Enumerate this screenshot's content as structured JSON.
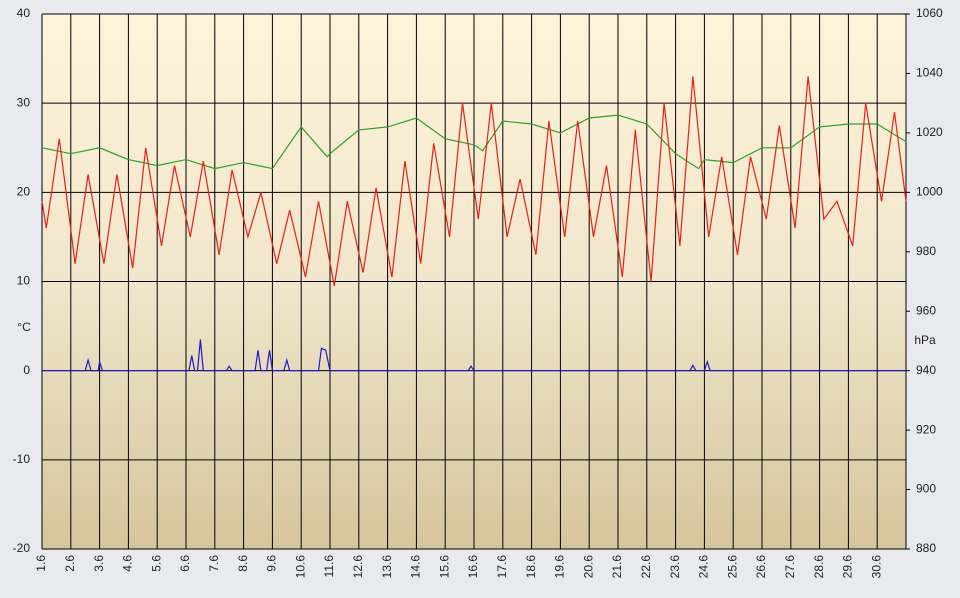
{
  "chart_data": {
    "type": "line",
    "ylabel": "°C",
    "y2label": "hPa",
    "xlim": [
      1,
      31
    ],
    "xticks": [
      {
        "value": 1,
        "label": "1.6"
      },
      {
        "value": 2,
        "label": "2.6"
      },
      {
        "value": 3,
        "label": "3.6"
      },
      {
        "value": 4,
        "label": "4.6"
      },
      {
        "value": 5,
        "label": "5.6"
      },
      {
        "value": 6,
        "label": "6.6"
      },
      {
        "value": 7,
        "label": "7.6"
      },
      {
        "value": 8,
        "label": "8.6"
      },
      {
        "value": 9,
        "label": "9.6"
      },
      {
        "value": 10,
        "label": "10.6"
      },
      {
        "value": 11,
        "label": "11.6"
      },
      {
        "value": 12,
        "label": "12.6"
      },
      {
        "value": 13,
        "label": "13.6"
      },
      {
        "value": 14,
        "label": "14.6"
      },
      {
        "value": 15,
        "label": "15.6"
      },
      {
        "value": 16,
        "label": "16.6"
      },
      {
        "value": 17,
        "label": "17.6"
      },
      {
        "value": 18,
        "label": "18.6"
      },
      {
        "value": 19,
        "label": "19.6"
      },
      {
        "value": 20,
        "label": "20.6"
      },
      {
        "value": 21,
        "label": "21.6"
      },
      {
        "value": 22,
        "label": "22.6"
      },
      {
        "value": 23,
        "label": "23.6"
      },
      {
        "value": 24,
        "label": "24.6"
      },
      {
        "value": 25,
        "label": "25.6"
      },
      {
        "value": 26,
        "label": "26.6"
      },
      {
        "value": 27,
        "label": "27.6"
      },
      {
        "value": 28,
        "label": "28.6"
      },
      {
        "value": 29,
        "label": "29.6"
      },
      {
        "value": 30,
        "label": "30.6"
      }
    ],
    "ylim": [
      -20,
      40
    ],
    "yticks": [
      -20,
      -10,
      0,
      10,
      20,
      30,
      40
    ],
    "y2lim": [
      880,
      1060
    ],
    "y2ticks": [
      880,
      900,
      920,
      940,
      960,
      980,
      1000,
      1020,
      1040,
      1060
    ],
    "grid": true,
    "series": [
      {
        "color": "#2ca02c",
        "axis": "y2",
        "x": [
          1,
          2,
          3,
          4,
          5,
          6,
          7,
          8,
          9,
          10,
          10.9,
          11,
          12,
          13,
          14,
          15,
          16,
          16.3,
          17,
          18,
          19,
          20,
          21,
          22,
          23,
          23.8,
          24,
          25,
          26,
          27,
          28,
          29,
          30,
          31
        ],
        "values": [
          1015,
          1013,
          1015,
          1011,
          1009,
          1011,
          1008,
          1010,
          1008,
          1022,
          1012,
          1013,
          1021,
          1022,
          1025,
          1018,
          1016,
          1014,
          1024,
          1023,
          1020,
          1025,
          1026,
          1023,
          1013,
          1008,
          1011,
          1010,
          1015,
          1015,
          1022,
          1023,
          1023,
          1017
        ]
      },
      {
        "color": "#e8201a",
        "x": [
          1,
          1.15,
          1.6,
          2.15,
          2.6,
          3.15,
          3.6,
          4.15,
          4.6,
          5.15,
          5.6,
          6.15,
          6.6,
          7.15,
          7.6,
          8.15,
          8.6,
          9.15,
          9.6,
          10.15,
          10.6,
          11.15,
          11.6,
          12.15,
          12.6,
          13.15,
          13.6,
          14.15,
          14.6,
          15.15,
          15.6,
          16.15,
          16.6,
          17.15,
          17.6,
          18.15,
          18.6,
          19.15,
          19.6,
          20.15,
          20.6,
          21.15,
          21.6,
          22.15,
          22.6,
          23.15,
          23.6,
          24.15,
          24.6,
          25.15,
          25.6,
          26.15,
          26.6,
          27.15,
          27.6,
          28.15,
          28.6,
          29.15,
          29.6,
          30.15,
          30.6,
          31
        ],
        "values": [
          19,
          16,
          26,
          12,
          22,
          12,
          22,
          11.5,
          25,
          14,
          23,
          15,
          23.5,
          13,
          22.5,
          15,
          20,
          12,
          18,
          10.5,
          19,
          9.5,
          19,
          11,
          20.5,
          10.5,
          23.5,
          12,
          25.5,
          15,
          30,
          17,
          30,
          15,
          21.5,
          13,
          28,
          15,
          28,
          15,
          23,
          10.5,
          27,
          10,
          30,
          14,
          33,
          15,
          24,
          13,
          24,
          17,
          27.5,
          16,
          33,
          17,
          19,
          14,
          30,
          19,
          29,
          19
        ]
      },
      {
        "color": "#1a1ad0",
        "x": [
          1,
          2.5,
          2.6,
          2.7,
          2.95,
          3.0,
          3.1,
          6.1,
          6.2,
          6.3,
          6.4,
          6.5,
          6.6,
          7.4,
          7.5,
          7.6,
          8.4,
          8.5,
          8.6,
          8.8,
          8.9,
          9.0,
          9.4,
          9.5,
          9.6,
          10.6,
          10.7,
          10.85,
          11.0,
          15.8,
          15.9,
          16.0,
          23.5,
          23.6,
          23.7,
          24.0,
          24.1,
          24.2,
          31
        ],
        "values": [
          0,
          0,
          1.2,
          0,
          0,
          1,
          0,
          0,
          1.7,
          0,
          0,
          3.5,
          0,
          0,
          0.5,
          0,
          0,
          2.3,
          0,
          0,
          2.3,
          0,
          0,
          1.2,
          0,
          0,
          2.5,
          2.3,
          0,
          0,
          0.5,
          0,
          0,
          0.6,
          0,
          0,
          1,
          0,
          0
        ]
      }
    ]
  }
}
